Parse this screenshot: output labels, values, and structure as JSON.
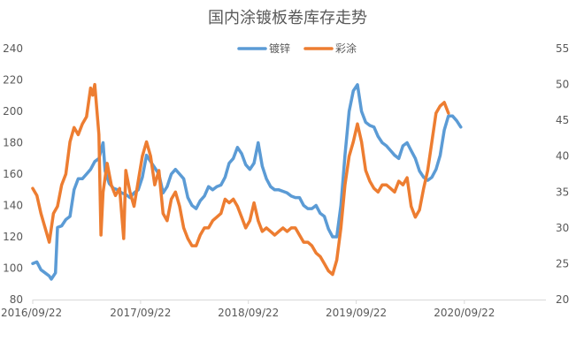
{
  "chart_data": {
    "type": "line",
    "title": "国内涂镀板卷库存走势",
    "x_tick_labels": [
      "2016/09/22",
      "2017/09/22",
      "2018/09/22",
      "2019/09/22",
      "2020/09/22"
    ],
    "x_range": [
      "2016-09-22",
      "2021-06-25"
    ],
    "y_left": {
      "range": [
        80,
        240
      ],
      "ticks": [
        80,
        100,
        120,
        140,
        160,
        180,
        200,
        220,
        240
      ]
    },
    "y_right": {
      "range": [
        20,
        55
      ],
      "ticks": [
        20,
        25,
        30,
        35,
        40,
        45,
        50,
        55
      ]
    },
    "grid": false,
    "legend_position": "top-center",
    "series": [
      {
        "name": "镀锌",
        "axis": "left",
        "color": "#5B9BD5",
        "points": [
          [
            "2016-09-22",
            103
          ],
          [
            "2016-10-06",
            104
          ],
          [
            "2016-10-20",
            99
          ],
          [
            "2016-11-03",
            97
          ],
          [
            "2016-11-17",
            95
          ],
          [
            "2016-11-24",
            93
          ],
          [
            "2016-12-08",
            97
          ],
          [
            "2016-12-15",
            126
          ],
          [
            "2016-12-29",
            127
          ],
          [
            "2017-01-12",
            131
          ],
          [
            "2017-01-26",
            133
          ],
          [
            "2017-02-09",
            150
          ],
          [
            "2017-02-23",
            157
          ],
          [
            "2017-03-09",
            157
          ],
          [
            "2017-03-23",
            160
          ],
          [
            "2017-04-06",
            163
          ],
          [
            "2017-04-20",
            168
          ],
          [
            "2017-05-04",
            170
          ],
          [
            "2017-05-18",
            180
          ],
          [
            "2017-05-25",
            162
          ],
          [
            "2017-06-08",
            154
          ],
          [
            "2017-06-22",
            151
          ],
          [
            "2017-07-06",
            150
          ],
          [
            "2017-07-20",
            148
          ],
          [
            "2017-08-03",
            147
          ],
          [
            "2017-08-17",
            145
          ],
          [
            "2017-08-31",
            148
          ],
          [
            "2017-09-14",
            150
          ],
          [
            "2017-09-28",
            158
          ],
          [
            "2017-10-12",
            172
          ],
          [
            "2017-10-26",
            168
          ],
          [
            "2017-11-09",
            164
          ],
          [
            "2017-11-23",
            160
          ],
          [
            "2017-12-07",
            148
          ],
          [
            "2017-12-21",
            152
          ],
          [
            "2018-01-04",
            160
          ],
          [
            "2018-01-18",
            163
          ],
          [
            "2018-02-01",
            160
          ],
          [
            "2018-02-15",
            157
          ],
          [
            "2018-03-01",
            145
          ],
          [
            "2018-03-15",
            140
          ],
          [
            "2018-03-29",
            138
          ],
          [
            "2018-04-12",
            143
          ],
          [
            "2018-04-26",
            146
          ],
          [
            "2018-05-10",
            152
          ],
          [
            "2018-05-24",
            150
          ],
          [
            "2018-06-07",
            152
          ],
          [
            "2018-06-21",
            153
          ],
          [
            "2018-07-05",
            158
          ],
          [
            "2018-07-19",
            167
          ],
          [
            "2018-08-02",
            170
          ],
          [
            "2018-08-16",
            177
          ],
          [
            "2018-08-30",
            173
          ],
          [
            "2018-09-13",
            166
          ],
          [
            "2018-09-27",
            163
          ],
          [
            "2018-10-11",
            167
          ],
          [
            "2018-10-25",
            180
          ],
          [
            "2018-11-08",
            165
          ],
          [
            "2018-11-22",
            157
          ],
          [
            "2018-12-06",
            152
          ],
          [
            "2018-12-20",
            150
          ],
          [
            "2019-01-03",
            150
          ],
          [
            "2019-01-17",
            149
          ],
          [
            "2019-01-31",
            148
          ],
          [
            "2019-02-14",
            146
          ],
          [
            "2019-02-28",
            145
          ],
          [
            "2019-03-14",
            145
          ],
          [
            "2019-03-28",
            140
          ],
          [
            "2019-04-11",
            138
          ],
          [
            "2019-04-25",
            138
          ],
          [
            "2019-05-09",
            140
          ],
          [
            "2019-05-23",
            135
          ],
          [
            "2019-06-06",
            133
          ],
          [
            "2019-06-20",
            125
          ],
          [
            "2019-07-04",
            120
          ],
          [
            "2019-07-18",
            120
          ],
          [
            "2019-08-01",
            140
          ],
          [
            "2019-08-15",
            172
          ],
          [
            "2019-08-29",
            200
          ],
          [
            "2019-09-12",
            213
          ],
          [
            "2019-09-26",
            217
          ],
          [
            "2019-10-10",
            200
          ],
          [
            "2019-10-24",
            193
          ],
          [
            "2019-11-07",
            191
          ],
          [
            "2019-11-21",
            190
          ],
          [
            "2019-12-05",
            184
          ],
          [
            "2019-12-19",
            180
          ],
          [
            "2020-01-02",
            178
          ],
          [
            "2020-01-16",
            175
          ],
          [
            "2020-01-30",
            172
          ],
          [
            "2020-02-13",
            170
          ],
          [
            "2020-02-27",
            178
          ],
          [
            "2020-03-12",
            180
          ],
          [
            "2020-03-26",
            175
          ],
          [
            "2020-04-09",
            170
          ],
          [
            "2020-04-23",
            162
          ],
          [
            "2020-05-07",
            158
          ],
          [
            "2020-05-21",
            156
          ],
          [
            "2020-06-04",
            158
          ],
          [
            "2020-06-18",
            163
          ],
          [
            "2020-07-02",
            172
          ],
          [
            "2020-07-16",
            188
          ],
          [
            "2020-07-30",
            197
          ],
          [
            "2020-08-13",
            197
          ],
          [
            "2020-08-27",
            194
          ],
          [
            "2020-09-10",
            190
          ]
        ]
      },
      {
        "name": "彩涂",
        "axis": "right",
        "color": "#ED7D31",
        "points": [
          [
            "2016-09-22",
            35.5
          ],
          [
            "2016-10-06",
            34.5
          ],
          [
            "2016-10-20",
            32
          ],
          [
            "2016-11-03",
            30
          ],
          [
            "2016-11-17",
            28
          ],
          [
            "2016-12-01",
            32
          ],
          [
            "2016-12-15",
            33
          ],
          [
            "2016-12-29",
            36
          ],
          [
            "2017-01-12",
            37.5
          ],
          [
            "2017-01-26",
            42
          ],
          [
            "2017-02-09",
            44
          ],
          [
            "2017-02-23",
            43
          ],
          [
            "2017-03-09",
            44.5
          ],
          [
            "2017-03-23",
            45.5
          ],
          [
            "2017-04-06",
            49.5
          ],
          [
            "2017-04-13",
            48.5
          ],
          [
            "2017-04-20",
            50
          ],
          [
            "2017-05-04",
            43
          ],
          [
            "2017-05-11",
            29
          ],
          [
            "2017-05-18",
            35
          ],
          [
            "2017-06-01",
            39
          ],
          [
            "2017-06-15",
            36
          ],
          [
            "2017-06-29",
            34.5
          ],
          [
            "2017-07-13",
            35.5
          ],
          [
            "2017-07-27",
            28.5
          ],
          [
            "2017-08-03",
            38
          ],
          [
            "2017-08-17",
            35
          ],
          [
            "2017-08-31",
            33
          ],
          [
            "2017-09-14",
            36.5
          ],
          [
            "2017-09-28",
            40
          ],
          [
            "2017-10-12",
            42
          ],
          [
            "2017-10-26",
            40
          ],
          [
            "2017-11-09",
            36
          ],
          [
            "2017-11-23",
            38
          ],
          [
            "2017-12-07",
            32
          ],
          [
            "2017-12-21",
            31
          ],
          [
            "2018-01-04",
            34
          ],
          [
            "2018-01-18",
            35
          ],
          [
            "2018-02-01",
            33
          ],
          [
            "2018-02-15",
            30
          ],
          [
            "2018-03-01",
            28.5
          ],
          [
            "2018-03-15",
            27.5
          ],
          [
            "2018-03-29",
            27.5
          ],
          [
            "2018-04-12",
            29
          ],
          [
            "2018-04-26",
            30
          ],
          [
            "2018-05-10",
            30
          ],
          [
            "2018-05-24",
            31
          ],
          [
            "2018-06-07",
            31.5
          ],
          [
            "2018-06-21",
            32
          ],
          [
            "2018-07-05",
            34
          ],
          [
            "2018-07-19",
            33.5
          ],
          [
            "2018-08-02",
            34
          ],
          [
            "2018-08-16",
            33
          ],
          [
            "2018-08-30",
            31.5
          ],
          [
            "2018-09-13",
            30
          ],
          [
            "2018-09-27",
            31
          ],
          [
            "2018-10-11",
            33.5
          ],
          [
            "2018-10-25",
            31
          ],
          [
            "2018-11-08",
            29.5
          ],
          [
            "2018-11-22",
            30
          ],
          [
            "2018-12-06",
            29.5
          ],
          [
            "2018-12-20",
            29
          ],
          [
            "2019-01-03",
            29.5
          ],
          [
            "2019-01-17",
            30
          ],
          [
            "2019-01-31",
            29.5
          ],
          [
            "2019-02-14",
            30
          ],
          [
            "2019-02-28",
            30
          ],
          [
            "2019-03-14",
            29
          ],
          [
            "2019-03-28",
            28
          ],
          [
            "2019-04-11",
            28
          ],
          [
            "2019-04-25",
            27.5
          ],
          [
            "2019-05-09",
            26.5
          ],
          [
            "2019-05-23",
            26
          ],
          [
            "2019-06-06",
            25
          ],
          [
            "2019-06-20",
            24
          ],
          [
            "2019-07-04",
            23.5
          ],
          [
            "2019-07-18",
            25.5
          ],
          [
            "2019-08-01",
            30
          ],
          [
            "2019-08-15",
            36
          ],
          [
            "2019-08-29",
            40
          ],
          [
            "2019-09-12",
            42
          ],
          [
            "2019-09-26",
            44.5
          ],
          [
            "2019-10-10",
            42
          ],
          [
            "2019-10-24",
            38
          ],
          [
            "2019-11-07",
            36.5
          ],
          [
            "2019-11-21",
            35.5
          ],
          [
            "2019-12-05",
            35
          ],
          [
            "2019-12-19",
            36
          ],
          [
            "2020-01-02",
            36
          ],
          [
            "2020-01-16",
            35.5
          ],
          [
            "2020-01-30",
            35
          ],
          [
            "2020-02-13",
            36.5
          ],
          [
            "2020-02-27",
            36
          ],
          [
            "2020-03-12",
            37
          ],
          [
            "2020-03-26",
            33
          ],
          [
            "2020-04-09",
            31.5
          ],
          [
            "2020-04-23",
            32.5
          ],
          [
            "2020-05-07",
            35.5
          ],
          [
            "2020-05-21",
            38
          ],
          [
            "2020-06-04",
            42
          ],
          [
            "2020-06-18",
            46
          ],
          [
            "2020-07-02",
            47
          ],
          [
            "2020-07-16",
            47.5
          ],
          [
            "2020-07-30",
            46
          ]
        ]
      }
    ]
  }
}
